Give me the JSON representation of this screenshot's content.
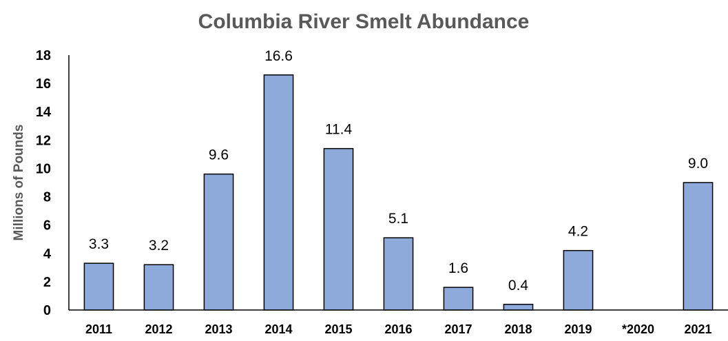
{
  "chart_data": {
    "type": "bar",
    "title": "Columbia River Smelt Abundance",
    "xlabel": "",
    "ylabel": "Millions of Pounds",
    "categories": [
      "2011",
      "2012",
      "2013",
      "2014",
      "2015",
      "2016",
      "2017",
      "2018",
      "2019",
      "*2020",
      "2021"
    ],
    "values": [
      3.3,
      3.2,
      9.6,
      16.6,
      11.4,
      5.1,
      1.6,
      0.4,
      4.2,
      null,
      9.0
    ],
    "data_labels": [
      "3.3",
      "3.2",
      "9.6",
      "16.6",
      "11.4",
      "5.1",
      "1.6",
      "0.4",
      "4.2",
      "",
      "9.0"
    ],
    "ylim": [
      0,
      18
    ],
    "yticks": [
      "0",
      "2",
      "4",
      "6",
      "8",
      "10",
      "12",
      "14",
      "16",
      "18"
    ],
    "grid": false,
    "legend": "none",
    "colors": {
      "bar_fill": "#8eaadb",
      "bar_stroke": "#000000",
      "title": "#595959",
      "axis": "#000000"
    }
  }
}
